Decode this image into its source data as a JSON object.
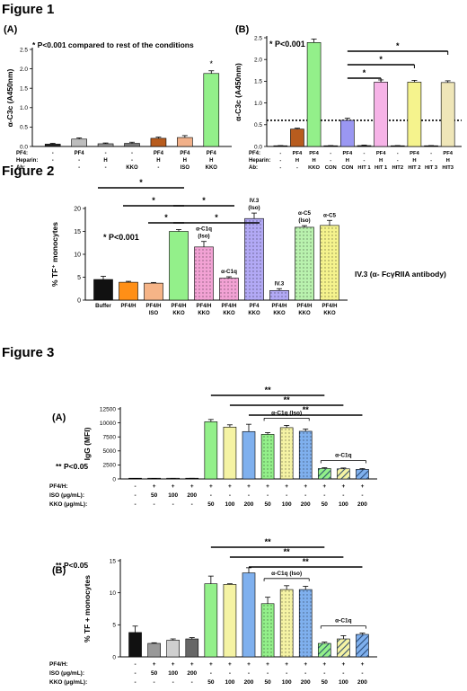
{
  "figure_titles": [
    "Figure 1",
    "Figure 2",
    "Figure 3"
  ],
  "chart_data": [
    {
      "id": "fig1a",
      "panel": "(A)",
      "type": "bar",
      "ylabel": "α-C3c (A450nm)",
      "ylim": [
        0,
        2.5
      ],
      "yticks": [
        0,
        0.5,
        1.0,
        1.5,
        2.0,
        2.5
      ],
      "annotation": "* P<0.001 compared to rest of the conditions",
      "row_labels": [
        "PF4:",
        "Heparin:",
        "Ab:"
      ],
      "categories": [
        [
          "-",
          "-",
          "-"
        ],
        [
          "PF4",
          "-",
          "-"
        ],
        [
          "-",
          "H",
          "-"
        ],
        [
          "-",
          "-",
          "KKO"
        ],
        [
          "PF4",
          "H",
          "-"
        ],
        [
          "PF4",
          "H",
          "ISO"
        ],
        [
          "PF4",
          "H",
          "KKO"
        ]
      ],
      "values": [
        0.06,
        0.19,
        0.07,
        0.08,
        0.21,
        0.23,
        1.88
      ],
      "errors": [
        0.02,
        0.03,
        0.02,
        0.03,
        0.03,
        0.05,
        0.07
      ],
      "colors": [
        "#222222",
        "#bdbdbd",
        "#9a9a9a",
        "#7a7a7a",
        "#b85c1e",
        "#f1b089",
        "#93f08a"
      ],
      "stars": [
        "",
        "",
        "",
        "",
        "",
        "",
        "*"
      ]
    },
    {
      "id": "fig1b",
      "panel": "(B)",
      "type": "bar",
      "ylabel": "α-C3c (A450nm)",
      "ylim": [
        0,
        2.5
      ],
      "yticks": [
        0,
        0.5,
        1.0,
        1.5,
        2.0,
        2.5
      ],
      "annotation": "* P<0.001",
      "dotted_line": 0.6,
      "row_labels": [
        "PF4:",
        "Heparin:",
        "Ab:"
      ],
      "categories": [
        [
          "-",
          "-",
          "-"
        ],
        [
          "PF4",
          "H",
          "-"
        ],
        [
          "PF4",
          "H",
          "KKO"
        ],
        [
          "-",
          "-",
          "CON"
        ],
        [
          "PF4",
          "H",
          "CON"
        ],
        [
          "-",
          "-",
          "HIT 1"
        ],
        [
          "PF4",
          "H",
          "HIT 1"
        ],
        [
          "-",
          "-",
          "HIT2"
        ],
        [
          "PF4",
          "H",
          "HIT 2"
        ],
        [
          "-",
          "-",
          "HIT 3"
        ],
        [
          "PF4",
          "H",
          "HIT3"
        ]
      ],
      "values": [
        0.01,
        0.4,
        2.39,
        0.01,
        0.6,
        0.02,
        1.48,
        0.01,
        1.48,
        0.01,
        1.47
      ],
      "errors": [
        0.01,
        0.02,
        0.08,
        0.01,
        0.05,
        0.01,
        0.05,
        0.01,
        0.04,
        0.01,
        0.04
      ],
      "colors": [
        "#222222",
        "#b85c1e",
        "#93f08a",
        "#222222",
        "#9a97f2",
        "#222222",
        "#f6b3e7",
        "#222222",
        "#f5f38d",
        "#222222",
        "#efe6b8"
      ],
      "brackets": [
        {
          "from": 4,
          "to": 10,
          "label": "*"
        },
        {
          "from": 4,
          "to": 8,
          "label": "*"
        },
        {
          "from": 4,
          "to": 6,
          "label": "*"
        }
      ]
    },
    {
      "id": "fig2",
      "type": "bar",
      "ylabel": "% TF⁺ monocytes",
      "ylim": [
        0,
        20
      ],
      "yticks": [
        0,
        5,
        10,
        15,
        20
      ],
      "annotation": "* P<0.001",
      "side_note": "IV.3 (α- FcγRIIA antibody)",
      "categories": [
        [
          "Buffer"
        ],
        [
          "PF4/H"
        ],
        [
          "PF4/H",
          "ISO"
        ],
        [
          "PF4/H",
          "KKO"
        ],
        [
          "PF4/H",
          "KKO"
        ],
        [
          "PF4/H",
          "KKO"
        ],
        [
          "PF4",
          "KKO"
        ],
        [
          "PF4/H",
          "KKO"
        ],
        [
          "PF4/H",
          "KKO"
        ],
        [
          "PF4/H",
          "KKO"
        ]
      ],
      "values": [
        4.5,
        3.9,
        3.7,
        15.0,
        11.6,
        4.8,
        17.8,
        2.1,
        15.9,
        16.3
      ],
      "errors": [
        0.7,
        0.2,
        0.15,
        0.4,
        1.2,
        0.3,
        1.2,
        0.4,
        0.35,
        1.1
      ],
      "colors": [
        "#111111",
        "#ff8f16",
        "#f6b487",
        "#93f08a",
        "#f2a2d4",
        "#f2a2d4",
        "#b2a9f5",
        "#b2a9f5",
        "#b9f2ae",
        "#f5f38d"
      ],
      "dotted": [
        false,
        false,
        false,
        false,
        true,
        true,
        true,
        true,
        true,
        true
      ],
      "bar_labels": [
        "",
        "",
        "",
        "",
        "α-C1q\n(Iso)",
        "α-C1q",
        "IV.3\n(Iso)",
        "IV.3",
        "α-C5\n(Iso)",
        "α-C5"
      ],
      "brackets": [
        {
          "from": 0,
          "to": 3,
          "label": "*"
        },
        {
          "from": 3,
          "to": 6,
          "label": "*"
        },
        {
          "from": 1,
          "to": 3,
          "label": "*"
        },
        {
          "from": 3,
          "to": 5,
          "label": "*"
        },
        {
          "from": 2,
          "to": 3,
          "label": "*"
        }
      ]
    },
    {
      "id": "fig3a",
      "panel": "(A)",
      "type": "bar",
      "ylabel": "IgG (MFI)",
      "ylim": [
        0,
        12500
      ],
      "yticks": [
        0,
        2500,
        5000,
        7500,
        10000,
        12500
      ],
      "annotation": "** P<0.05",
      "row_labels": [
        "PF4/H:",
        "ISO (μg/mL):",
        "KKO (μg/mL):"
      ],
      "categories": [
        [
          "-",
          "-",
          "-"
        ],
        [
          "+",
          "50",
          "-"
        ],
        [
          "+",
          "100",
          "-"
        ],
        [
          "+",
          "200",
          "-"
        ],
        [
          "+",
          "-",
          "50"
        ],
        [
          "+",
          "-",
          "100"
        ],
        [
          "+",
          "-",
          "200"
        ],
        [
          "+",
          "-",
          "50"
        ],
        [
          "+",
          "-",
          "100"
        ],
        [
          "+",
          "-",
          "200"
        ],
        [
          "+",
          "-",
          "50"
        ],
        [
          "+",
          "-",
          "100"
        ],
        [
          "+",
          "-",
          "200"
        ]
      ],
      "values": [
        30,
        60,
        80,
        90,
        10200,
        9250,
        8450,
        7950,
        9150,
        8500,
        1850,
        1800,
        1700
      ],
      "errors": [
        10,
        20,
        20,
        20,
        400,
        400,
        1300,
        300,
        400,
        400,
        150,
        150,
        150
      ],
      "colors": [
        "#222222",
        "#777777",
        "#bdbdbd",
        "#555555",
        "#93f08a",
        "#f5f3a4",
        "#7fb0ee",
        "#93f08a",
        "#f5f3a4",
        "#7fb0ee",
        "#93f08a",
        "#f5f3a4",
        "#7fb0ee"
      ],
      "pattern": [
        "",
        "",
        "",
        "",
        "",
        "",
        "",
        "dot",
        "dot",
        "dot",
        "hatch",
        "hatch",
        "hatch"
      ],
      "group_labels": [
        {
          "from": 7,
          "to": 9,
          "label": "α-C1q (Iso)"
        },
        {
          "from": 10,
          "to": 12,
          "label": "α-C1q"
        }
      ],
      "brackets": [
        {
          "from": 4,
          "to": 10,
          "label": "**"
        },
        {
          "from": 5,
          "to": 11,
          "label": "**"
        },
        {
          "from": 6,
          "to": 12,
          "label": "**"
        }
      ]
    },
    {
      "id": "fig3b",
      "panel": "(B)",
      "type": "bar",
      "ylabel": "% TF + monocytes",
      "ylim": [
        0,
        15
      ],
      "yticks": [
        0,
        5,
        10,
        15
      ],
      "annotation": "** P<0.05",
      "row_labels": [
        "PF4/H:",
        "ISO (μg/mL):",
        "KKO (μg/mL):"
      ],
      "categories": [
        [
          "-",
          "-",
          "-"
        ],
        [
          "+",
          "50",
          "-"
        ],
        [
          "+",
          "100",
          "-"
        ],
        [
          "+",
          "200",
          "-"
        ],
        [
          "+",
          "-",
          "50"
        ],
        [
          "+",
          "-",
          "100"
        ],
        [
          "+",
          "-",
          "200"
        ],
        [
          "+",
          "-",
          "50"
        ],
        [
          "+",
          "-",
          "100"
        ],
        [
          "+",
          "-",
          "200"
        ],
        [
          "+",
          "-",
          "50"
        ],
        [
          "+",
          "-",
          "100"
        ],
        [
          "+",
          "-",
          "200"
        ]
      ],
      "values": [
        3.8,
        2.1,
        2.6,
        2.8,
        11.4,
        11.3,
        13.1,
        8.3,
        10.5,
        10.5,
        2.1,
        2.8,
        3.5
      ],
      "errors": [
        1.0,
        0.1,
        0.2,
        0.2,
        1.2,
        0.1,
        0.8,
        1.0,
        0.6,
        0.5,
        0.2,
        0.5,
        0.2
      ],
      "colors": [
        "#111111",
        "#999999",
        "#cfcfcf",
        "#666666",
        "#93f08a",
        "#f5f3a4",
        "#7fb0ee",
        "#93f08a",
        "#f5f3a4",
        "#7fb0ee",
        "#93f08a",
        "#f5f3a4",
        "#7fb0ee"
      ],
      "pattern": [
        "",
        "",
        "",
        "",
        "",
        "",
        "",
        "dot",
        "dot",
        "dot",
        "hatch",
        "hatch",
        "hatch"
      ],
      "group_labels": [
        {
          "from": 7,
          "to": 9,
          "label": "α-C1q (Iso)"
        },
        {
          "from": 10,
          "to": 12,
          "label": "α-C1q"
        }
      ],
      "brackets": [
        {
          "from": 4,
          "to": 10,
          "label": "**"
        },
        {
          "from": 5,
          "to": 11,
          "label": "**"
        },
        {
          "from": 6,
          "to": 12,
          "label": "**"
        }
      ]
    }
  ]
}
